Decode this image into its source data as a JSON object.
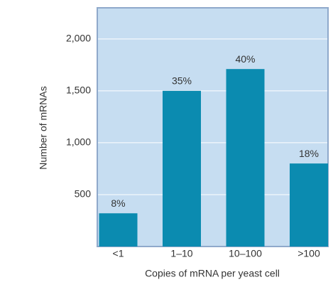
{
  "chart_data": {
    "type": "bar",
    "x_label": "Copies of mRNA per yeast cell",
    "y_label": "Number of mRNAs",
    "categories": [
      "<1",
      "1–10",
      "10–100",
      ">100"
    ],
    "values": [
      320,
      1500,
      1710,
      800
    ],
    "annotations": [
      "8%",
      "35%",
      "40%",
      "18%"
    ],
    "color": "#0b8bb0",
    "background": "#c6ddf1",
    "ylim": [
      0,
      2300
    ],
    "yticks": [
      500,
      {
        "value": 1000,
        "label": "1,000"
      },
      {
        "value": 1500,
        "label": "1,500"
      },
      {
        "value": 2000,
        "label": "2,000"
      }
    ],
    "grid": true
  }
}
